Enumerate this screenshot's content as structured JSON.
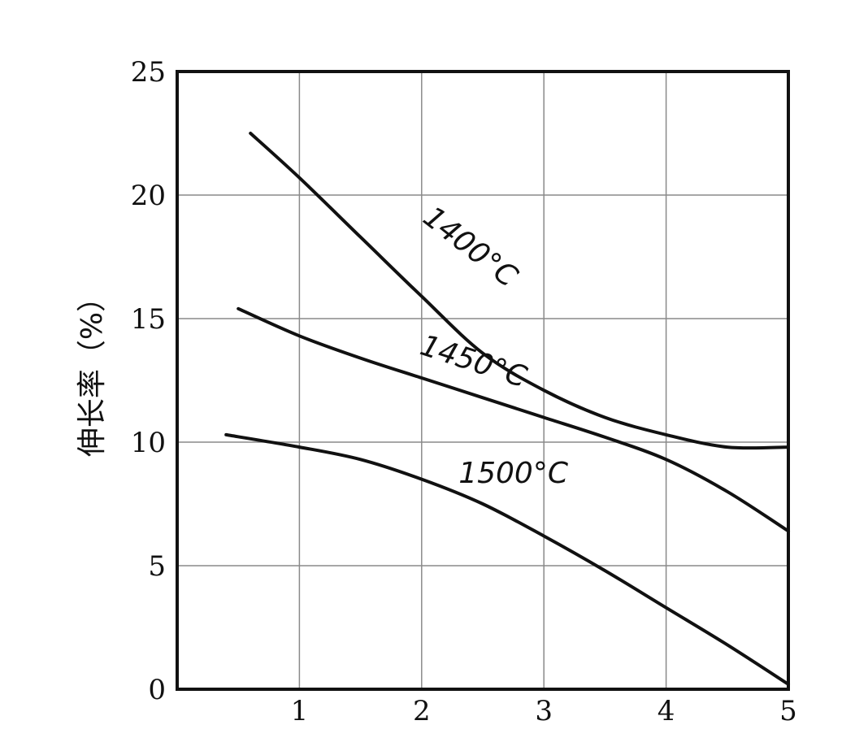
{
  "chart_data": {
    "type": "line",
    "title": "",
    "xlabel": "",
    "ylabel": "伸长率（%）",
    "xlim": [
      0,
      5
    ],
    "ylim": [
      0,
      25
    ],
    "x_ticks": [
      "1",
      "2",
      "3",
      "4",
      "5"
    ],
    "y_ticks": [
      "0",
      "5",
      "10",
      "15",
      "20",
      "25"
    ],
    "grid": true,
    "legend": "none",
    "series": [
      {
        "name": "1400°C",
        "x": [
          0.6,
          1.0,
          1.5,
          2.0,
          2.5,
          3.0,
          3.5,
          4.0,
          4.5,
          5.0
        ],
        "values": [
          22.5,
          20.7,
          18.3,
          15.9,
          13.6,
          12.1,
          11.0,
          10.3,
          9.8,
          9.8
        ]
      },
      {
        "name": "1450°C",
        "x": [
          0.5,
          1.0,
          1.5,
          2.0,
          2.5,
          3.0,
          3.5,
          4.0,
          4.5,
          5.0
        ],
        "values": [
          15.4,
          14.3,
          13.4,
          12.6,
          11.8,
          11.0,
          10.2,
          9.3,
          8.0,
          6.4
        ]
      },
      {
        "name": "1500°C",
        "x": [
          0.4,
          1.0,
          1.5,
          2.0,
          2.5,
          3.0,
          3.5,
          4.0,
          4.5,
          5.0
        ],
        "values": [
          10.3,
          9.8,
          9.3,
          8.5,
          7.5,
          6.2,
          4.8,
          3.3,
          1.8,
          0.2
        ]
      }
    ]
  }
}
